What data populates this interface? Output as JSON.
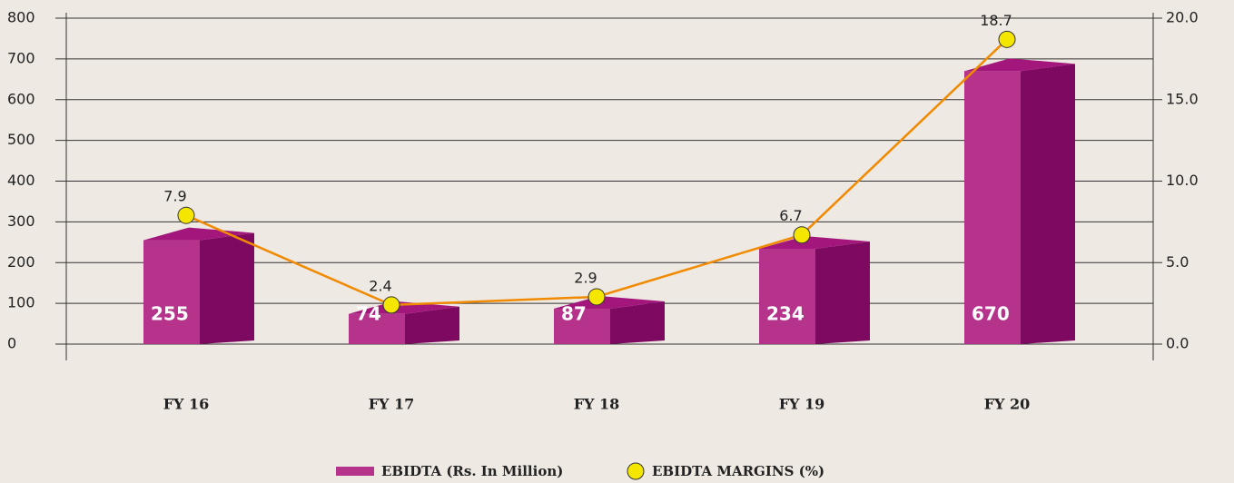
{
  "chart_data": {
    "type": "bar",
    "categories": [
      "FY 16",
      "FY 17",
      "FY 18",
      "FY 19",
      "FY 20"
    ],
    "series": [
      {
        "name": "EBIDTA (Rs. In Million)",
        "color": "#b5338a",
        "values": [
          255,
          74,
          87,
          234,
          670
        ]
      },
      {
        "name": "EBIDTA MARGINS (%)",
        "type": "line",
        "axis": "y2",
        "color": "#f08a00",
        "marker_color": "#f5e600",
        "values": [
          7.9,
          2.4,
          2.9,
          6.7,
          18.7
        ]
      }
    ],
    "ylim": [
      0,
      800
    ],
    "yticks": [
      0,
      100,
      200,
      300,
      400,
      500,
      600,
      700,
      800
    ],
    "y2lim": [
      0,
      20
    ],
    "y2ticks": [
      {
        "value": 0,
        "label": "0.0"
      },
      {
        "value": 5,
        "label": "5.0"
      },
      {
        "value": 10,
        "label": "10.0"
      },
      {
        "value": 15,
        "label": "15.0"
      },
      {
        "value": 20,
        "label": "20.0"
      }
    ],
    "grid": true
  }
}
